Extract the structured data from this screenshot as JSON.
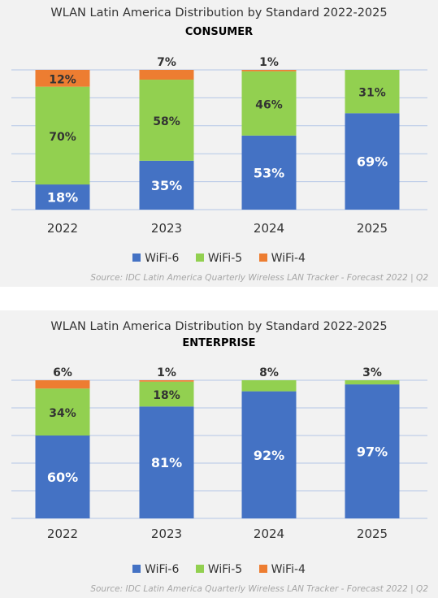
{
  "colors": {
    "wifi6": "#4472C4",
    "wifi5": "#92D050",
    "wifi4": "#ED7D31"
  },
  "chart_data": [
    {
      "type": "bar",
      "stacked": true,
      "title": "WLAN Latin America Distribution by Standard 2022-2025",
      "subtitle": "CONSUMER",
      "categories": [
        "2022",
        "2023",
        "2024",
        "2025"
      ],
      "series": [
        {
          "name": "WiFi-6",
          "values": [
            18,
            35,
            53,
            69
          ],
          "labels": [
            "18%",
            "35%",
            "53%",
            "69%"
          ]
        },
        {
          "name": "WiFi-5",
          "values": [
            70,
            58,
            46,
            31
          ],
          "labels": [
            "70%",
            "58%",
            "46%",
            "31%"
          ]
        },
        {
          "name": "WiFi-4",
          "values": [
            12,
            7,
            1,
            0
          ],
          "labels": [
            "12%",
            "7%",
            "1%",
            ""
          ]
        }
      ],
      "ylim": [
        0,
        100
      ],
      "grid": true,
      "legend_position": "bottom",
      "source": "Source: IDC Latin America Quarterly Wireless LAN Tracker - Forecast 2022 | Q2"
    },
    {
      "type": "bar",
      "stacked": true,
      "title": "WLAN Latin America Distribution by Standard 2022-2025",
      "subtitle": "ENTERPRISE",
      "categories": [
        "2022",
        "2023",
        "2024",
        "2025"
      ],
      "series": [
        {
          "name": "WiFi-6",
          "values": [
            60,
            81,
            92,
            97
          ],
          "labels": [
            "60%",
            "81%",
            "92%",
            "97%"
          ]
        },
        {
          "name": "WiFi-5",
          "values": [
            34,
            18,
            8,
            3
          ],
          "labels": [
            "34%",
            "18%",
            "8%",
            "3%"
          ]
        },
        {
          "name": "WiFi-4",
          "values": [
            6,
            1,
            0,
            0
          ],
          "labels": [
            "6%",
            "1%",
            "",
            ""
          ]
        }
      ],
      "ylim": [
        0,
        100
      ],
      "grid": true,
      "legend_position": "bottom",
      "source": "Source: IDC Latin America Quarterly Wireless LAN Tracker - Forecast 2022 | Q2"
    }
  ]
}
